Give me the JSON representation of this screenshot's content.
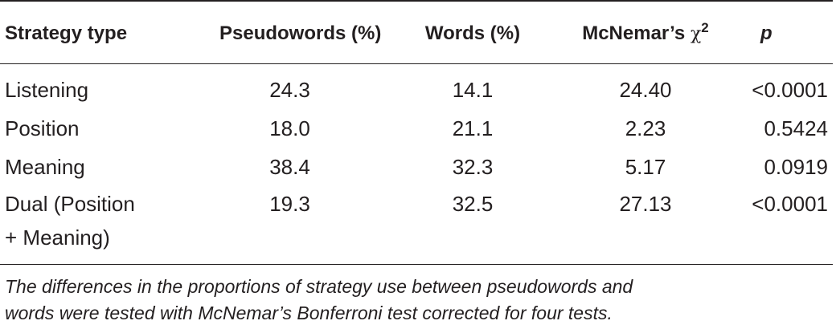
{
  "table": {
    "headers": {
      "strategy": "Strategy type",
      "pseudowords": "Pseudowords (%)",
      "words": "Words (%)",
      "mcnemar_prefix": "McNemar’s",
      "mcnemar_symbol": "χ",
      "mcnemar_sup": "2",
      "p": "p"
    },
    "rows": [
      {
        "strategy": "Listening",
        "strategy_line2": "",
        "pseudowords": "24.3",
        "words": "14.1",
        "chi2": "24.40",
        "p": "<0.0001"
      },
      {
        "strategy": "Position",
        "strategy_line2": "",
        "pseudowords": "18.0",
        "words": "21.1",
        "chi2": "2.23",
        "p": "0.5424"
      },
      {
        "strategy": "Meaning",
        "strategy_line2": "",
        "pseudowords": "38.4",
        "words": "32.3",
        "chi2": "5.17",
        "p": "0.0919"
      },
      {
        "strategy": "Dual (Position",
        "strategy_line2": "+ Meaning)",
        "pseudowords": "19.3",
        "words": "32.5",
        "chi2": "27.13",
        "p": "<0.0001"
      }
    ]
  },
  "footnote": {
    "line1": "The differences in the proportions of strategy use between pseudowords and",
    "line2": "words were tested with McNemar’s Bonferroni test corrected for four tests."
  }
}
